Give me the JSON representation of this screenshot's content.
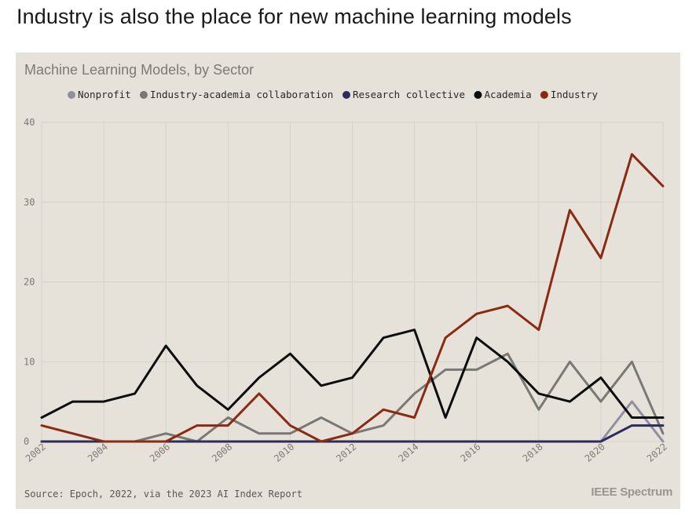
{
  "page": {
    "headline": "Industry is also the place for new machine learning models"
  },
  "chart_data": {
    "type": "line",
    "title": "Machine Learning Models, by Sector",
    "xlabel": "",
    "ylabel": "",
    "x": [
      2002,
      2003,
      2004,
      2005,
      2006,
      2007,
      2008,
      2009,
      2010,
      2011,
      2012,
      2013,
      2014,
      2015,
      2016,
      2017,
      2018,
      2019,
      2020,
      2021,
      2022
    ],
    "x_tick_labels": [
      "2002",
      "2004",
      "2006",
      "2008",
      "2010",
      "2012",
      "2014",
      "2016",
      "2018",
      "2020",
      "2022"
    ],
    "y_tick_labels": [
      "0",
      "10",
      "20",
      "30",
      "40"
    ],
    "xlim": [
      2002,
      2022
    ],
    "ylim": [
      0,
      40
    ],
    "grid": true,
    "legend_position": "top",
    "series": [
      {
        "name": "Nonprofit",
        "color": "#8f8ea3",
        "values": [
          0,
          0,
          0,
          0,
          0,
          0,
          0,
          0,
          0,
          0,
          0,
          0,
          0,
          0,
          0,
          0,
          0,
          0,
          0,
          5,
          0
        ]
      },
      {
        "name": "Industry-academia collaboration",
        "color": "#7a7874",
        "values": [
          0,
          0,
          0,
          0,
          1,
          0,
          3,
          1,
          1,
          3,
          1,
          2,
          6,
          9,
          9,
          11,
          4,
          10,
          5,
          10,
          1
        ]
      },
      {
        "name": "Research collective",
        "color": "#2b2d5c",
        "values": [
          0,
          0,
          0,
          0,
          0,
          0,
          0,
          0,
          0,
          0,
          0,
          0,
          0,
          0,
          0,
          0,
          0,
          0,
          0,
          2,
          2
        ]
      },
      {
        "name": "Academia",
        "color": "#0d0d0d",
        "values": [
          3,
          5,
          5,
          6,
          12,
          7,
          4,
          8,
          11,
          7,
          8,
          13,
          14,
          3,
          13,
          10,
          6,
          5,
          8,
          3,
          3
        ]
      },
      {
        "name": "Industry",
        "color": "#8b2a12",
        "values": [
          2,
          1,
          0,
          0,
          0,
          2,
          2,
          6,
          2,
          0,
          1,
          4,
          3,
          13,
          16,
          17,
          14,
          29,
          23,
          36,
          32
        ]
      }
    ]
  },
  "footer": {
    "source": "Source: Epoch, 2022, via the 2023 AI Index Report",
    "brand": "IEEE Spectrum"
  }
}
